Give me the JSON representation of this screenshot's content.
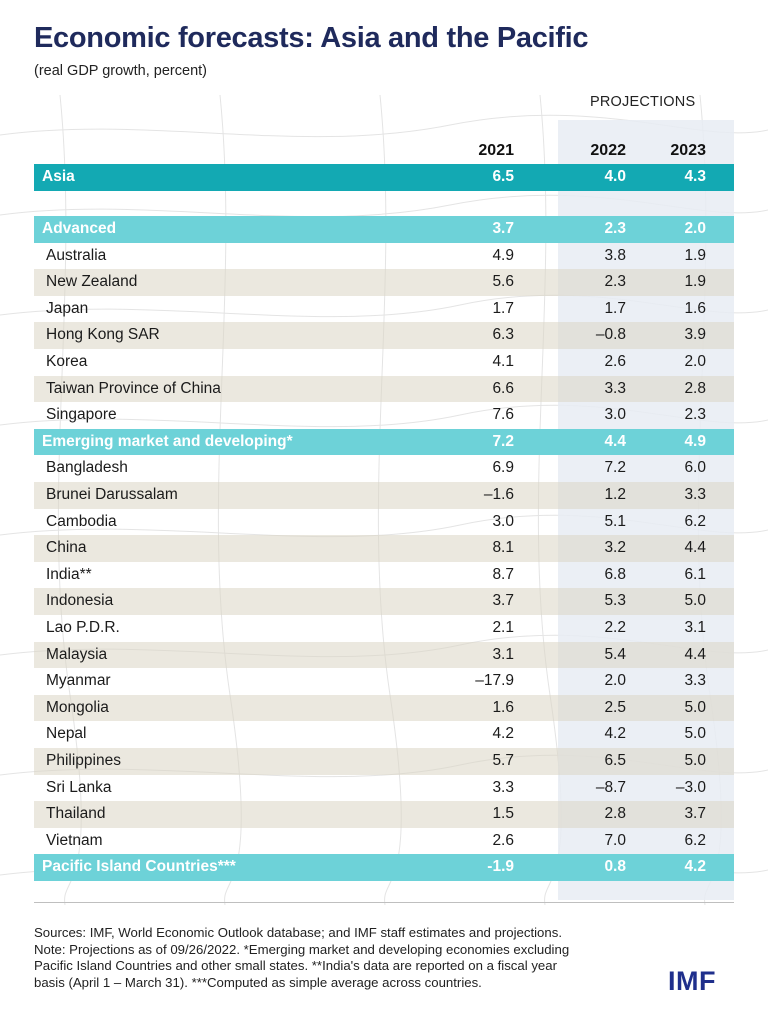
{
  "title": "Economic forecasts: Asia and the Pacific",
  "subtitle": "(real GDP growth, percent)",
  "projections_label": "PROJECTIONS",
  "years": [
    "2021",
    "2022",
    "2023"
  ],
  "logo": "IMF",
  "notes": [
    "Sources: IMF, World Economic Outlook database; and IMF staff estimates and projections.",
    "Note: Projections as of 09/26/2022. *Emerging market and developing economies excluding",
    "Pacific Island Countries and other small states. **India's data are reported on a fiscal year",
    "basis (April 1 – March 31). ***Computed as simple average across countries."
  ],
  "colors": {
    "header_dark": "#13a9b3",
    "header_light": "#6dd2d8",
    "stripe": "#dad6c4",
    "projection_band": "#e8ecf3",
    "title": "#1f2a5c",
    "logo": "#1f2f8c"
  },
  "chart_data": {
    "type": "table",
    "columns": [
      "",
      "2021",
      "2022",
      "2023"
    ],
    "rows": [
      {
        "name": "Asia",
        "values": [
          "6.5",
          "4.0",
          "4.3"
        ],
        "style": "header-dark"
      },
      {
        "name": "Advanced",
        "values": [
          "3.7",
          "2.3",
          "2.0"
        ],
        "style": "header-light"
      },
      {
        "name": "Australia",
        "values": [
          "4.9",
          "3.8",
          "1.9"
        ],
        "style": "plain"
      },
      {
        "name": "New Zealand",
        "values": [
          "5.6",
          "2.3",
          "1.9"
        ],
        "style": "striped"
      },
      {
        "name": "Japan",
        "values": [
          "1.7",
          "1.7",
          "1.6"
        ],
        "style": "plain"
      },
      {
        "name": "Hong Kong SAR",
        "values": [
          "6.3",
          "–0.8",
          "3.9"
        ],
        "style": "striped"
      },
      {
        "name": "Korea",
        "values": [
          "4.1",
          "2.6",
          "2.0"
        ],
        "style": "plain"
      },
      {
        "name": "Taiwan Province of China",
        "values": [
          "6.6",
          "3.3",
          "2.8"
        ],
        "style": "striped"
      },
      {
        "name": "Singapore",
        "values": [
          "7.6",
          "3.0",
          "2.3"
        ],
        "style": "plain"
      },
      {
        "name": "Emerging market and developing*",
        "values": [
          "7.2",
          "4.4",
          "4.9"
        ],
        "style": "header-light"
      },
      {
        "name": "Bangladesh",
        "values": [
          "6.9",
          "7.2",
          "6.0"
        ],
        "style": "plain"
      },
      {
        "name": "Brunei Darussalam",
        "values": [
          "–1.6",
          "1.2",
          "3.3"
        ],
        "style": "striped"
      },
      {
        "name": "Cambodia",
        "values": [
          "3.0",
          "5.1",
          "6.2"
        ],
        "style": "plain"
      },
      {
        "name": "China",
        "values": [
          "8.1",
          "3.2",
          "4.4"
        ],
        "style": "striped"
      },
      {
        "name": "India**",
        "values": [
          "8.7",
          "6.8",
          "6.1"
        ],
        "style": "plain"
      },
      {
        "name": "Indonesia",
        "values": [
          "3.7",
          "5.3",
          "5.0"
        ],
        "style": "striped"
      },
      {
        "name": "Lao P.D.R.",
        "values": [
          "2.1",
          "2.2",
          "3.1"
        ],
        "style": "plain"
      },
      {
        "name": "Malaysia",
        "values": [
          "3.1",
          "5.4",
          "4.4"
        ],
        "style": "striped"
      },
      {
        "name": "Myanmar",
        "values": [
          "–17.9",
          "2.0",
          "3.3"
        ],
        "style": "plain"
      },
      {
        "name": "Mongolia",
        "values": [
          "1.6",
          "2.5",
          "5.0"
        ],
        "style": "striped"
      },
      {
        "name": "Nepal",
        "values": [
          "4.2",
          "4.2",
          "5.0"
        ],
        "style": "plain"
      },
      {
        "name": "Philippines",
        "values": [
          "5.7",
          "6.5",
          "5.0"
        ],
        "style": "striped"
      },
      {
        "name": "Sri Lanka",
        "values": [
          "3.3",
          "–8.7",
          "–3.0"
        ],
        "style": "plain"
      },
      {
        "name": "Thailand",
        "values": [
          "1.5",
          "2.8",
          "3.7"
        ],
        "style": "striped"
      },
      {
        "name": "Vietnam",
        "values": [
          "2.6",
          "7.0",
          "6.2"
        ],
        "style": "plain"
      },
      {
        "name": "Pacific Island Countries***",
        "values": [
          "-1.9",
          "0.8",
          "4.2"
        ],
        "style": "header-light"
      }
    ]
  }
}
